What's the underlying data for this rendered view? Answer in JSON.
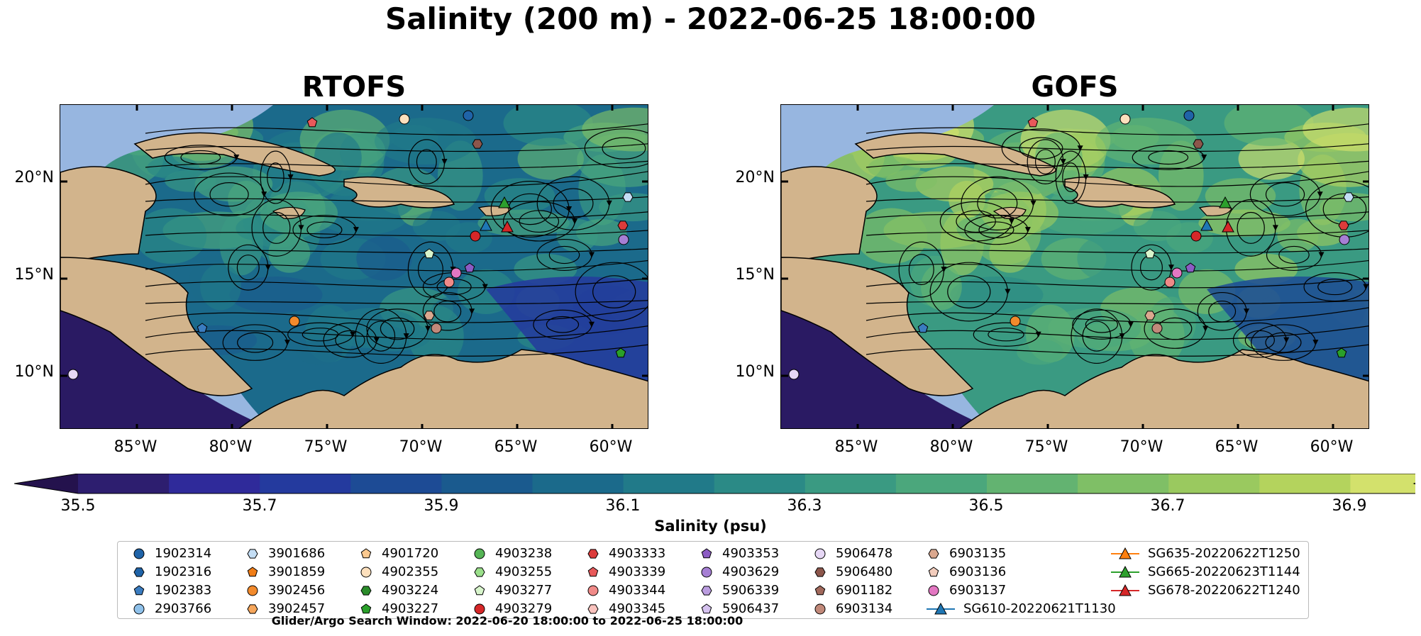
{
  "figure": {
    "suptitle": "Salinity (200 m) - 2022-06-25 18:00:00",
    "footnote": "Glider/Argo Search Window: 2022-06-20 18:00:00 to 2022-06-25 18:00:00"
  },
  "panels": [
    {
      "title": "RTOFS",
      "palette_shift": 0.0
    },
    {
      "title": "GOFS",
      "palette_shift": 0.25
    }
  ],
  "axes": {
    "lat_ticks": [
      "20°N",
      "15°N",
      "10°N"
    ],
    "lon_ticks": [
      "85°W",
      "80°W",
      "75°W",
      "70°W",
      "65°W",
      "60°W"
    ]
  },
  "colorbar": {
    "label": "Salinity (psu)",
    "ticks": [
      "35.5",
      "35.7",
      "35.9",
      "36.1",
      "36.3",
      "36.5",
      "36.7",
      "36.9"
    ],
    "colors": [
      "#2d1e6f",
      "#2f2a9a",
      "#243a9e",
      "#1d4b95",
      "#1a5a8e",
      "#1b6a8b",
      "#217a89",
      "#2b8a86",
      "#3a9a82",
      "#4ba77c",
      "#63b371",
      "#7fbf66",
      "#9ac95f",
      "#b4d35d",
      "#d3e16c"
    ],
    "under_color": "#24124d",
    "over_color": "#f6ec8a"
  },
  "colors": {
    "land": "#d2b48c",
    "shallow": "#97b6e0",
    "deep_open": "#2a1a63"
  },
  "legend": [
    {
      "label": "1902314",
      "marker": "circle",
      "color": "#1f63a8"
    },
    {
      "label": "1902316",
      "marker": "hexagon",
      "color": "#1f63a8"
    },
    {
      "label": "1902383",
      "marker": "pentagon",
      "color": "#3a7cc0"
    },
    {
      "label": "2903766",
      "marker": "circle",
      "color": "#8fc1ea"
    },
    {
      "label": "3901686",
      "marker": "hexagon",
      "color": "#c4def5"
    },
    {
      "label": "3901859",
      "marker": "pentagon",
      "color": "#f07d17"
    },
    {
      "label": "3902456",
      "marker": "circle",
      "color": "#f28a2c"
    },
    {
      "label": "3902457",
      "marker": "hexagon",
      "color": "#f6a65b"
    },
    {
      "label": "4901720",
      "marker": "pentagon",
      "color": "#fbc98f"
    },
    {
      "label": "4902355",
      "marker": "circle",
      "color": "#fde0bd"
    },
    {
      "label": "4903224",
      "marker": "hexagon",
      "color": "#2a8c2a"
    },
    {
      "label": "4903227",
      "marker": "pentagon",
      "color": "#2aa02a"
    },
    {
      "label": "4903238",
      "marker": "circle",
      "color": "#55b455"
    },
    {
      "label": "4903255",
      "marker": "hexagon",
      "color": "#9adf8a"
    },
    {
      "label": "4903277",
      "marker": "pentagon",
      "color": "#d8f5cc"
    },
    {
      "label": "4903279",
      "marker": "circle",
      "color": "#d62728"
    },
    {
      "label": "4903333",
      "marker": "hexagon",
      "color": "#dc3b3b"
    },
    {
      "label": "4903339",
      "marker": "pentagon",
      "color": "#e8595a"
    },
    {
      "label": "4903344",
      "marker": "circle",
      "color": "#f08a88"
    },
    {
      "label": "4903345",
      "marker": "hexagon",
      "color": "#f9c2bd"
    },
    {
      "label": "4903353",
      "marker": "pentagon",
      "color": "#8c5cc4"
    },
    {
      "label": "4903629",
      "marker": "circle",
      "color": "#a67fd4"
    },
    {
      "label": "5906339",
      "marker": "hexagon",
      "color": "#bb9de0"
    },
    {
      "label": "5906437",
      "marker": "pentagon",
      "color": "#d5c2ef"
    },
    {
      "label": "5906478",
      "marker": "circle",
      "color": "#e6d7f5"
    },
    {
      "label": "5906480",
      "marker": "hexagon",
      "color": "#8c564b"
    },
    {
      "label": "6901182",
      "marker": "pentagon",
      "color": "#a1695c"
    },
    {
      "label": "6903134",
      "marker": "circle",
      "color": "#c1897a"
    },
    {
      "label": "6903135",
      "marker": "hexagon",
      "color": "#dba88f"
    },
    {
      "label": "6903136",
      "marker": "pentagon",
      "color": "#f3cdbd"
    },
    {
      "label": "6903137",
      "marker": "circle",
      "color": "#e377c2"
    },
    {
      "label": "SG610-20220621T1130",
      "marker": "triangle-line",
      "color": "#1f77b4"
    },
    {
      "label": "SG635-20220622T1250",
      "marker": "triangle-line",
      "color": "#ff7f0e"
    },
    {
      "label": "SG665-20220623T1144",
      "marker": "triangle-line",
      "color": "#2ca02c"
    },
    {
      "label": "SG678-20220622T1240",
      "marker": "triangle-line",
      "color": "#d62728"
    }
  ]
}
